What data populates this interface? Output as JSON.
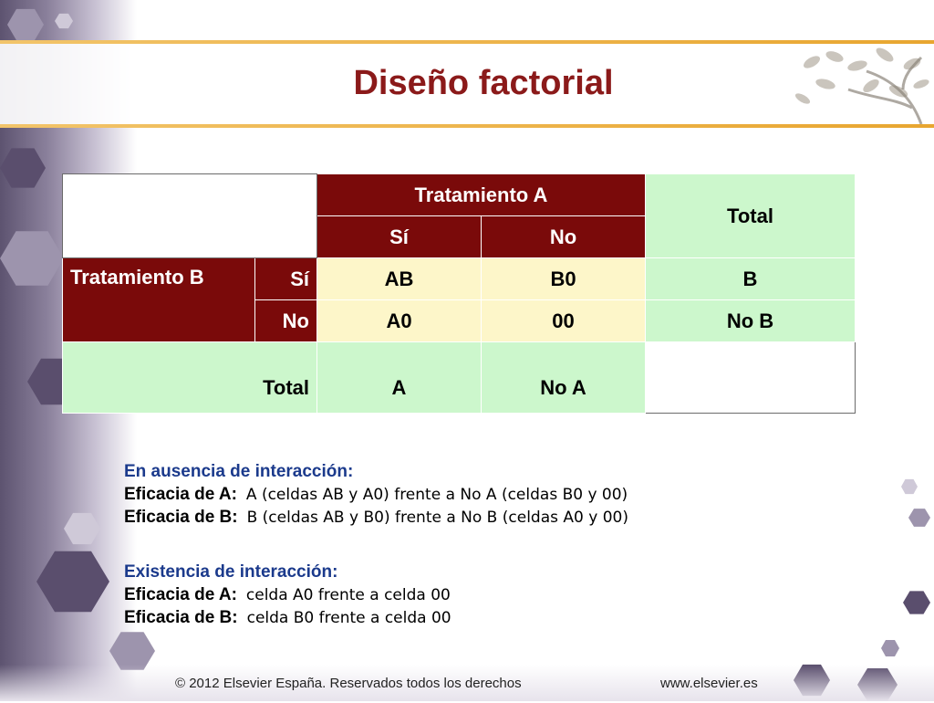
{
  "title": "Diseño factorial",
  "table": {
    "tratamiento_a": "Tratamiento A",
    "tratamiento_b": "Tratamiento B",
    "total_header": "Total",
    "si": "Sí",
    "no": "No",
    "cells": {
      "ab": "AB",
      "b0": "B0",
      "a0": "A0",
      "zero": "00",
      "b": "B",
      "no_b": "No B",
      "a": "A",
      "no_a": "No A"
    },
    "total_row": "Total"
  },
  "section1": {
    "heading": "En ausencia de interacción:",
    "lines": [
      {
        "label": "Eficacia de A:",
        "text": "A (celdas AB y A0) frente a No A (celdas B0 y 00)"
      },
      {
        "label": "Eficacia de B:",
        "text": "B (celdas AB y B0) frente a No B (celdas A0 y 00)"
      }
    ]
  },
  "section2": {
    "heading": "Existencia de interacción:",
    "lines": [
      {
        "label": "Eficacia de A:",
        "text": "celda A0 frente a celda 00"
      },
      {
        "label": "Eficacia de B:",
        "text": "celda B0 frente a celda 00"
      }
    ]
  },
  "footer": {
    "copyright": "© 2012 Elsevier España. Reservados todos los derechos",
    "website": "www.elsevier.es"
  },
  "colors": {
    "title": "#8b1a1a",
    "header_bg": "#7a0a0a",
    "green_cell": "#ccf7cc",
    "yellow_cell": "#fdf6c9",
    "blue_heading": "#1b3a8c"
  }
}
